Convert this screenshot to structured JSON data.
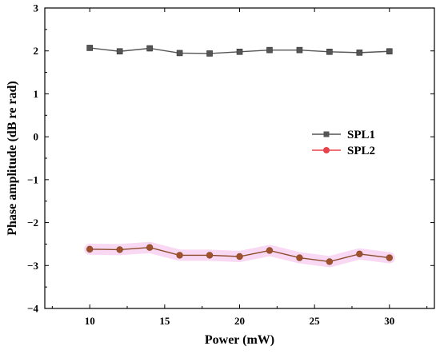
{
  "chart_data": {
    "type": "line",
    "xlabel": "Power (mW)",
    "ylabel": "Phase amplitude (dB re rad)",
    "xlim": [
      7,
      33
    ],
    "ylim": [
      -4,
      3
    ],
    "xticks": [
      10,
      15,
      20,
      25,
      30
    ],
    "yticks": [
      -4,
      -3,
      -2,
      -1,
      0,
      1,
      2,
      3
    ],
    "xtick_labels": [
      "10",
      "15",
      "20",
      "25",
      "30"
    ],
    "ytick_labels": [
      "−4",
      "−3",
      "−2",
      "−1",
      "0",
      "1",
      "2",
      "3"
    ],
    "legend_position": "right-middle",
    "series": [
      {
        "name": "SPL1",
        "marker": "square",
        "color": "#555555",
        "x": [
          10,
          12,
          14,
          16,
          18,
          20,
          22,
          24,
          26,
          28,
          30
        ],
        "y": [
          2.07,
          1.99,
          2.06,
          1.95,
          1.94,
          1.98,
          2.02,
          2.02,
          1.98,
          1.96,
          1.99
        ]
      },
      {
        "name": "SPL2",
        "marker": "circle",
        "color": "#e8434b",
        "line_color": "#8b4a2a",
        "x": [
          10,
          12,
          14,
          16,
          18,
          20,
          22,
          24,
          26,
          28,
          30
        ],
        "y": [
          -2.62,
          -2.63,
          -2.58,
          -2.76,
          -2.76,
          -2.79,
          -2.65,
          -2.82,
          -2.91,
          -2.73,
          -2.82
        ]
      }
    ]
  }
}
